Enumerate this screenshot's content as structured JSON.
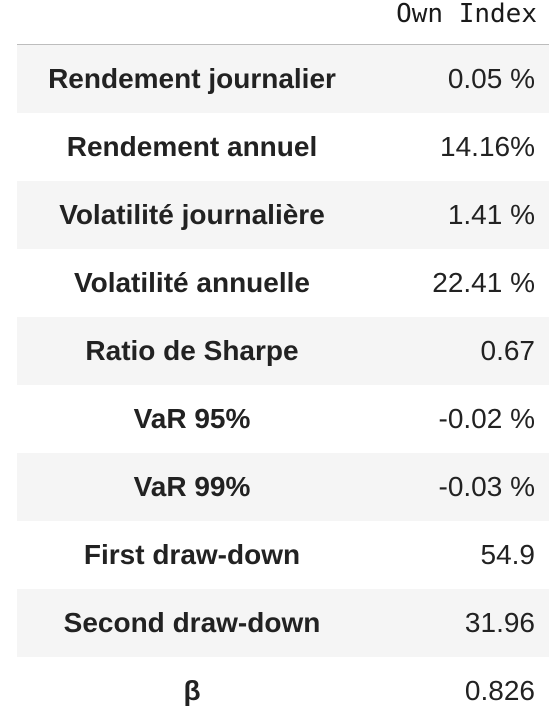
{
  "table": {
    "column_header": "Own Index",
    "rows": [
      {
        "label": "Rendement journalier",
        "value": "0.05 %"
      },
      {
        "label": "Rendement annuel",
        "value": "14.16%"
      },
      {
        "label": "Volatilité journalière",
        "value": "1.41 %"
      },
      {
        "label": "Volatilité annuelle",
        "value": "22.41 %"
      },
      {
        "label": "Ratio de Sharpe",
        "value": "0.67"
      },
      {
        "label": "VaR 95%",
        "value": "-0.02 %"
      },
      {
        "label": "VaR 99%",
        "value": "-0.03 %"
      },
      {
        "label": "First draw-down",
        "value": "54.9"
      },
      {
        "label": "Second draw-down",
        "value": "31.96"
      },
      {
        "label": "β",
        "value": "0.826"
      }
    ]
  }
}
